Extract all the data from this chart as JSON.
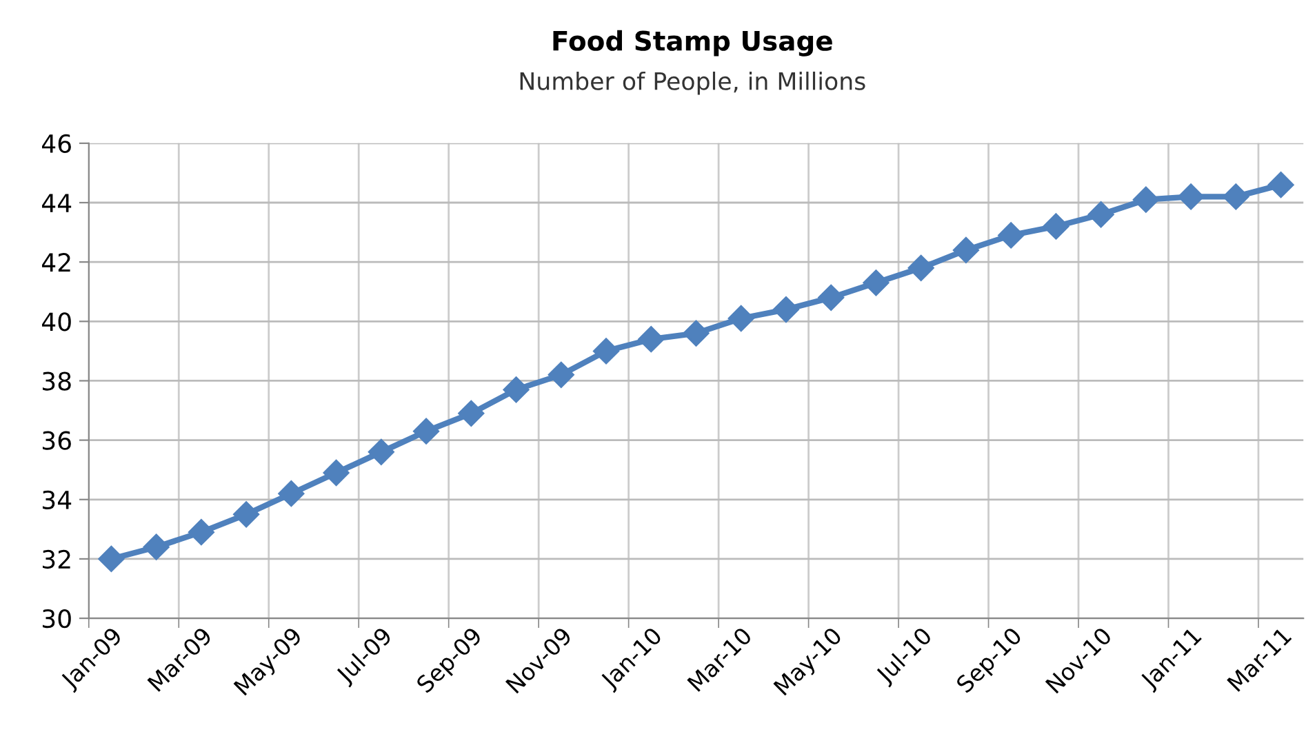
{
  "chart_data": {
    "type": "line",
    "title": "Food Stamp Usage",
    "subtitle": "Number of People, in Millions",
    "categories": [
      "Jan-09",
      null,
      "Mar-09",
      null,
      "May-09",
      null,
      "Jul-09",
      null,
      "Sep-09",
      null,
      "Nov-09",
      null,
      "Jan-10",
      null,
      "Mar-10",
      null,
      "May-10",
      null,
      "Jul-10",
      null,
      "Sep-10",
      null,
      "Nov-10",
      null,
      "Jan-11",
      null,
      "Mar-11"
    ],
    "series": [
      {
        "color": "#4f81bd",
        "values": [
          32.0,
          32.4,
          32.9,
          33.5,
          34.2,
          34.9,
          35.6,
          36.3,
          36.9,
          37.7,
          38.2,
          39.0,
          39.4,
          39.6,
          40.1,
          40.4,
          40.8,
          41.3,
          41.8,
          42.4,
          42.9,
          43.2,
          43.6,
          44.1,
          44.2,
          44.2,
          44.6
        ]
      }
    ],
    "ylim": [
      30,
      46
    ],
    "yticks": [
      30,
      32,
      34,
      36,
      38,
      40,
      42,
      44,
      46
    ],
    "grid": true,
    "marker": "diamond",
    "line_style": "solid"
  }
}
